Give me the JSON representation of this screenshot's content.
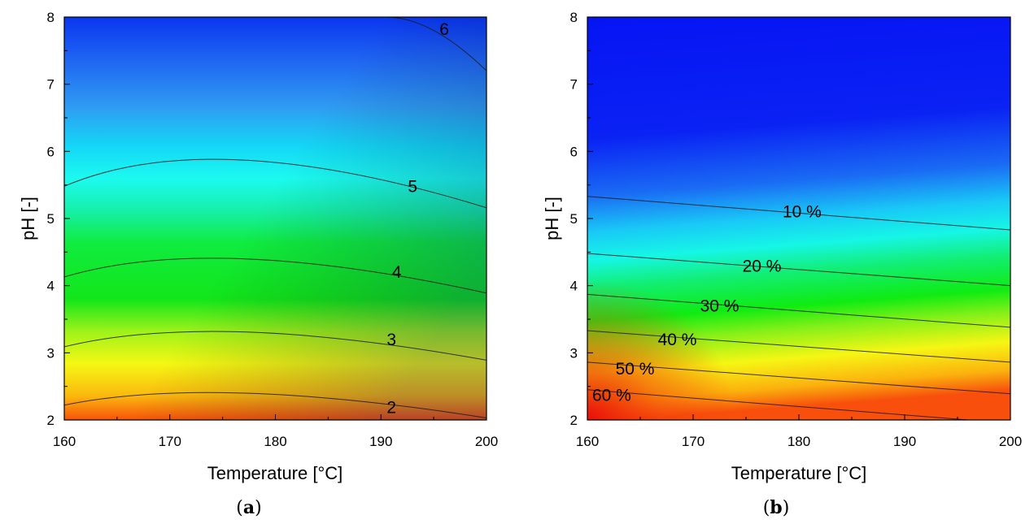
{
  "chart_data": [
    {
      "type": "contour",
      "panel_label": "(a)",
      "panel_letter": "a",
      "xlabel": "Temperature [°C]",
      "ylabel": "pH [-]",
      "xlim": [
        160,
        200
      ],
      "ylim": [
        2,
        8
      ],
      "xticks": [
        160,
        170,
        180,
        190,
        200
      ],
      "yticks": [
        2,
        3,
        4,
        5,
        6,
        7,
        8
      ],
      "value_range": [
        1.5,
        6.5
      ],
      "contours": [
        {
          "label": "2",
          "level": 2,
          "points": [
            [
              160,
              2.22
            ],
            [
              177,
              2.4
            ],
            [
              200,
              2.03
            ]
          ],
          "label_at": [
            191,
            2.19
          ]
        },
        {
          "label": "3",
          "level": 3,
          "points": [
            [
              160,
              3.09
            ],
            [
              177,
              3.31
            ],
            [
              200,
              2.89
            ]
          ],
          "label_at": [
            191,
            3.2
          ]
        },
        {
          "label": "4",
          "level": 4,
          "points": [
            [
              160,
              4.13
            ],
            [
              177,
              4.4
            ],
            [
              200,
              3.89
            ]
          ],
          "label_at": [
            191.5,
            4.2
          ]
        },
        {
          "label": "5",
          "level": 5,
          "points": [
            [
              160,
              5.48
            ],
            [
              177,
              5.87
            ],
            [
              200,
              5.16
            ]
          ],
          "label_at": [
            193,
            5.48
          ]
        },
        {
          "label": "6",
          "level": 6,
          "points": [
            [
              190.5,
              8.0
            ],
            [
              195,
              7.8
            ],
            [
              200,
              7.2
            ]
          ],
          "label_at": [
            196,
            7.82
          ]
        }
      ]
    },
    {
      "type": "contour",
      "panel_label": "(b)",
      "panel_letter": "b",
      "xlabel": "Temperature [°C]",
      "ylabel": "pH [-]",
      "xlim": [
        160,
        200
      ],
      "ylim": [
        2,
        8
      ],
      "xticks": [
        160,
        170,
        180,
        190,
        200
      ],
      "yticks": [
        2,
        3,
        4,
        5,
        6,
        7,
        8
      ],
      "value_range": [
        0,
        75
      ],
      "contours": [
        {
          "label": "10 %",
          "level": 10,
          "points": [
            [
              160,
              5.33
            ],
            [
              200,
              4.83
            ]
          ],
          "label_at": [
            180.3,
            5.1
          ]
        },
        {
          "label": "20 %",
          "level": 20,
          "points": [
            [
              160,
              4.48
            ],
            [
              200,
              4.0
            ]
          ],
          "label_at": [
            176.5,
            4.29
          ]
        },
        {
          "label": "30 %",
          "level": 30,
          "points": [
            [
              160,
              3.87
            ],
            [
              200,
              3.38
            ]
          ],
          "label_at": [
            172.5,
            3.7
          ]
        },
        {
          "label": "40 %",
          "level": 40,
          "points": [
            [
              160,
              3.33
            ],
            [
              200,
              2.86
            ]
          ],
          "label_at": [
            168.5,
            3.2
          ]
        },
        {
          "label": "50 %",
          "level": 50,
          "points": [
            [
              160,
              2.86
            ],
            [
              200,
              2.39
            ]
          ],
          "label_at": [
            164.5,
            2.76
          ]
        },
        {
          "label": "60 %",
          "level": 60,
          "points": [
            [
              160,
              2.45
            ],
            [
              196,
              2.0
            ]
          ],
          "label_at": [
            162.3,
            2.37
          ]
        }
      ]
    }
  ]
}
